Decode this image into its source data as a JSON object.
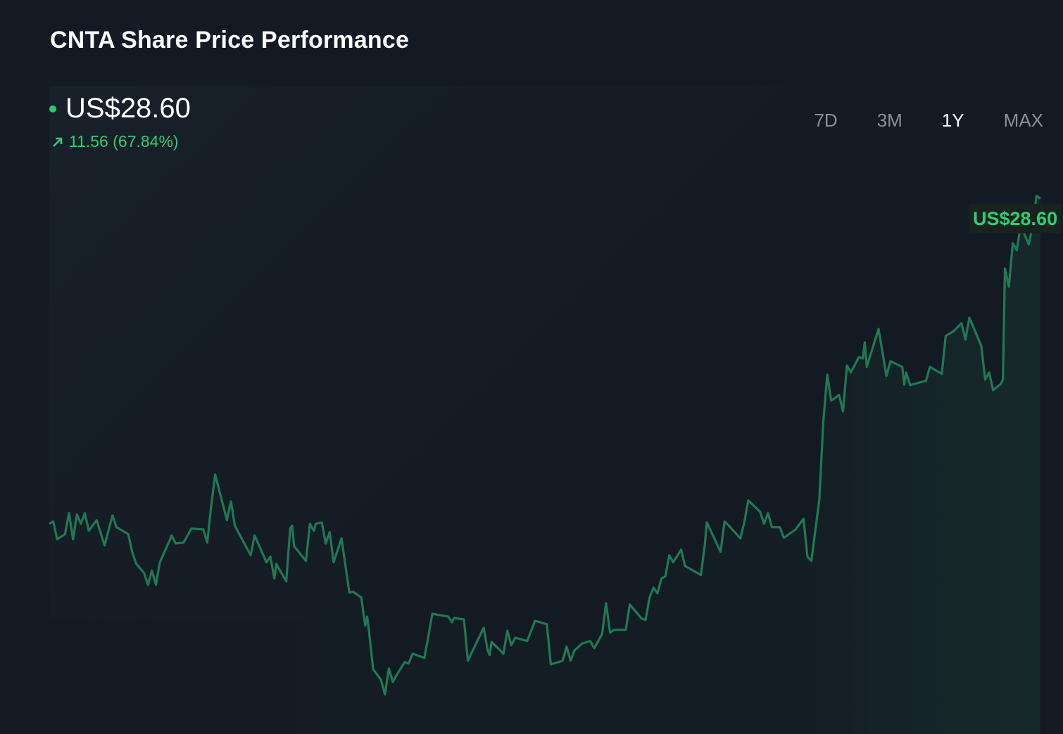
{
  "chart_data": {
    "type": "line",
    "title": "CNTA Share Price Performance",
    "current_price": "US$28.60",
    "change": "11.56 (67.84%)",
    "end_label": "US$28.60",
    "xlabel": "",
    "ylabel": "",
    "x_unit": "trading day index (1Y)",
    "ylim": [
      10.0,
      29.5
    ],
    "grid": false,
    "line_color": "#1f7a52",
    "accent_color": "#2ecc71",
    "ranges": [
      "7D",
      "3M",
      "1Y",
      "MAX"
    ],
    "selected_range": "1Y",
    "points": [
      [
        0,
        17.04
      ],
      [
        1,
        17.12
      ],
      [
        2,
        16.49
      ],
      [
        4,
        16.67
      ],
      [
        5,
        17.42
      ],
      [
        6,
        16.49
      ],
      [
        7,
        17.37
      ],
      [
        8,
        17.04
      ],
      [
        9,
        17.42
      ],
      [
        10,
        16.79
      ],
      [
        12,
        17.17
      ],
      [
        14,
        16.27
      ],
      [
        16,
        17.34
      ],
      [
        17,
        16.92
      ],
      [
        20,
        16.67
      ],
      [
        21,
        16.04
      ],
      [
        22,
        15.62
      ],
      [
        24,
        15.29
      ],
      [
        25,
        14.87
      ],
      [
        26,
        15.37
      ],
      [
        27,
        14.87
      ],
      [
        28,
        15.67
      ],
      [
        31,
        16.62
      ],
      [
        32,
        16.34
      ],
      [
        34,
        16.37
      ],
      [
        36,
        16.87
      ],
      [
        39,
        16.84
      ],
      [
        40,
        16.37
      ],
      [
        41,
        17.67
      ],
      [
        42,
        18.79
      ],
      [
        45,
        17.17
      ],
      [
        46,
        17.84
      ],
      [
        47,
        16.97
      ],
      [
        51,
        15.92
      ],
      [
        52,
        16.62
      ],
      [
        52.5,
        16.47
      ],
      [
        55,
        15.67
      ],
      [
        56,
        15.87
      ],
      [
        57,
        15.09
      ],
      [
        57.5,
        15.62
      ],
      [
        60,
        14.99
      ],
      [
        61,
        16.87
      ],
      [
        61.5,
        16.97
      ],
      [
        62,
        16.24
      ],
      [
        65,
        15.72
      ],
      [
        66,
        17.04
      ],
      [
        67,
        16.79
      ],
      [
        67.5,
        17.04
      ],
      [
        69,
        17.09
      ],
      [
        70,
        16.34
      ],
      [
        71,
        16.74
      ],
      [
        72,
        15.67
      ],
      [
        74,
        16.52
      ],
      [
        76,
        14.59
      ],
      [
        77,
        14.62
      ],
      [
        79,
        14.42
      ],
      [
        80,
        13.42
      ],
      [
        80.5,
        13.74
      ],
      [
        81,
        13.17
      ],
      [
        82,
        11.87
      ],
      [
        84,
        11.49
      ],
      [
        85,
        10.97
      ],
      [
        86,
        11.89
      ],
      [
        87,
        11.42
      ],
      [
        88,
        11.67
      ],
      [
        90,
        12.12
      ],
      [
        91,
        12.07
      ],
      [
        92,
        12.42
      ],
      [
        95,
        12.27
      ],
      [
        96,
        13.04
      ],
      [
        97,
        13.84
      ],
      [
        101,
        13.74
      ],
      [
        102,
        13.54
      ],
      [
        102.5,
        13.69
      ],
      [
        105,
        13.64
      ],
      [
        106,
        12.17
      ],
      [
        107,
        12.47
      ],
      [
        110,
        13.34
      ],
      [
        111,
        12.54
      ],
      [
        111.5,
        12.37
      ],
      [
        112,
        12.84
      ],
      [
        115,
        12.42
      ],
      [
        116,
        13.24
      ],
      [
        117,
        12.72
      ],
      [
        118,
        12.99
      ],
      [
        121,
        12.87
      ],
      [
        123,
        13.59
      ],
      [
        126,
        13.47
      ],
      [
        127,
        12.04
      ],
      [
        130,
        12.17
      ],
      [
        131,
        12.67
      ],
      [
        132,
        12.17
      ],
      [
        133,
        12.54
      ],
      [
        135,
        12.79
      ],
      [
        137,
        12.87
      ],
      [
        138,
        12.62
      ],
      [
        140,
        13.12
      ],
      [
        141,
        14.22
      ],
      [
        142,
        13.17
      ],
      [
        143,
        13.27
      ],
      [
        146,
        13.27
      ],
      [
        147,
        14.17
      ],
      [
        150,
        13.67
      ],
      [
        151,
        13.62
      ],
      [
        152,
        14.42
      ],
      [
        153,
        14.77
      ],
      [
        154,
        14.57
      ],
      [
        155,
        15.09
      ],
      [
        156,
        15.17
      ],
      [
        157,
        15.92
      ],
      [
        158,
        15.67
      ],
      [
        160,
        16.12
      ],
      [
        161,
        15.54
      ],
      [
        165,
        15.22
      ],
      [
        166,
        16.29
      ],
      [
        166.5,
        17.09
      ],
      [
        170,
        16.04
      ],
      [
        171,
        17.12
      ],
      [
        172,
        16.99
      ],
      [
        175,
        16.52
      ],
      [
        176,
        17.09
      ],
      [
        177,
        17.87
      ],
      [
        180,
        17.47
      ],
      [
        181,
        17.04
      ],
      [
        182,
        17.42
      ],
      [
        183,
        16.92
      ],
      [
        185,
        16.92
      ],
      [
        186,
        16.54
      ],
      [
        188,
        16.74
      ],
      [
        189,
        16.84
      ],
      [
        191,
        17.22
      ],
      [
        192,
        15.87
      ],
      [
        193,
        15.72
      ],
      [
        195,
        17.92
      ],
      [
        196,
        20.67
      ],
      [
        197,
        22.34
      ],
      [
        198,
        21.42
      ],
      [
        200,
        21.62
      ],
      [
        201,
        21.04
      ],
      [
        202,
        22.67
      ],
      [
        203,
        22.42
      ],
      [
        205,
        22.97
      ],
      [
        206,
        22.92
      ],
      [
        206.5,
        23.49
      ],
      [
        207,
        22.62
      ],
      [
        210,
        23.97
      ],
      [
        212,
        22.29
      ],
      [
        213,
        22.82
      ],
      [
        216,
        22.62
      ],
      [
        216.5,
        21.99
      ],
      [
        217,
        22.42
      ],
      [
        218,
        21.97
      ],
      [
        221,
        22.09
      ],
      [
        222,
        22.12
      ],
      [
        223,
        22.62
      ],
      [
        226,
        22.37
      ],
      [
        227,
        23.72
      ],
      [
        229,
        23.89
      ],
      [
        231,
        24.17
      ],
      [
        232,
        23.59
      ],
      [
        233,
        24.37
      ],
      [
        236,
        23.37
      ],
      [
        237,
        22.17
      ],
      [
        238,
        22.42
      ],
      [
        239,
        21.79
      ],
      [
        241,
        22.02
      ],
      [
        241.5,
        22.17
      ],
      [
        242,
        26.12
      ],
      [
        243,
        25.47
      ],
      [
        244,
        27.02
      ],
      [
        245,
        26.77
      ],
      [
        246,
        27.67
      ],
      [
        248,
        26.97
      ],
      [
        249,
        27.62
      ],
      [
        250,
        28.7
      ],
      [
        251,
        28.6
      ]
    ]
  }
}
